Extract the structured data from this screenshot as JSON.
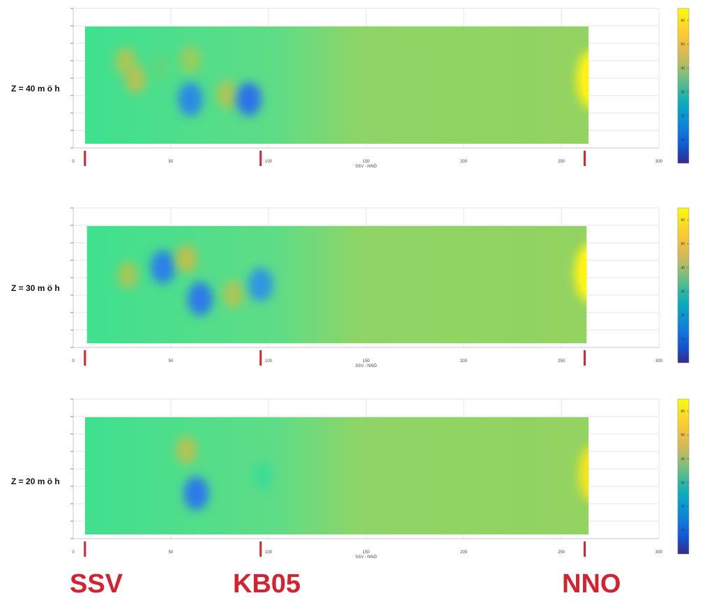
{
  "colors": {
    "marker_red": "#d4232f",
    "grid": "#e6e6e6",
    "axis": "#c8c8c8"
  },
  "markers": {
    "x_positions": [
      6,
      96,
      262
    ],
    "labels": [
      "SSV",
      "KB05",
      "NNO"
    ]
  },
  "chart_data": [
    {
      "type": "heatmap",
      "panel_label": "Z = 40 m ö h",
      "xlabel": "SSV - NNÖ",
      "xlim": [
        0,
        300
      ],
      "xticks": [
        0,
        50,
        100,
        150,
        200,
        250,
        300
      ],
      "data_x_range": [
        6,
        264
      ],
      "colorbar": {
        "ticks": [
          "10",
          "20",
          "30",
          "40",
          "50",
          "60"
        ],
        "range": [
          0,
          65
        ]
      },
      "features": [
        {
          "kind": "blob",
          "x": 27,
          "y": 0.3,
          "value": 34
        },
        {
          "kind": "blob",
          "x": 32,
          "y": 0.45,
          "value": 35
        },
        {
          "kind": "blob",
          "x": 45,
          "y": 0.35,
          "value": 27
        },
        {
          "kind": "blob",
          "x": 60,
          "y": 0.28,
          "value": 32
        },
        {
          "kind": "blob",
          "x": 60,
          "y": 0.62,
          "value": 12
        },
        {
          "kind": "blob",
          "x": 79,
          "y": 0.58,
          "value": 34
        },
        {
          "kind": "blob",
          "x": 90,
          "y": 0.62,
          "value": 6
        },
        {
          "kind": "edge",
          "x": 262,
          "y": 0.45,
          "value": 55
        }
      ]
    },
    {
      "type": "heatmap",
      "panel_label": "Z = 30 m ö h",
      "xlabel": "SSV - NNÖ",
      "xlim": [
        0,
        300
      ],
      "xticks": [
        0,
        50,
        100,
        150,
        200,
        250,
        300
      ],
      "data_x_range": [
        7,
        263
      ],
      "colorbar": {
        "ticks": [
          "10",
          "20",
          "30",
          "40",
          "50",
          "60"
        ],
        "range": [
          0,
          65
        ]
      },
      "features": [
        {
          "kind": "blob",
          "x": 28,
          "y": 0.42,
          "value": 33
        },
        {
          "kind": "blob",
          "x": 46,
          "y": 0.35,
          "value": 10
        },
        {
          "kind": "blob",
          "x": 58,
          "y": 0.28,
          "value": 36
        },
        {
          "kind": "blob",
          "x": 65,
          "y": 0.62,
          "value": 8
        },
        {
          "kind": "blob",
          "x": 82,
          "y": 0.58,
          "value": 34
        },
        {
          "kind": "blob",
          "x": 96,
          "y": 0.5,
          "value": 15
        },
        {
          "kind": "edge",
          "x": 261,
          "y": 0.4,
          "value": 56
        }
      ]
    },
    {
      "type": "heatmap",
      "panel_label": "Z = 20 m ö h",
      "xlabel": "SSV - NNÖ",
      "xlim": [
        0,
        300
      ],
      "xticks": [
        0,
        50,
        100,
        150,
        200,
        250,
        300
      ],
      "data_x_range": [
        6,
        264
      ],
      "colorbar": {
        "ticks": [
          "10",
          "20",
          "30",
          "40",
          "50",
          "60"
        ],
        "range": [
          0,
          65
        ]
      },
      "features": [
        {
          "kind": "blob",
          "x": 58,
          "y": 0.28,
          "value": 35
        },
        {
          "kind": "blob",
          "x": 63,
          "y": 0.65,
          "value": 8
        },
        {
          "kind": "blob",
          "x": 97,
          "y": 0.5,
          "value": 24
        },
        {
          "kind": "edge",
          "x": 263,
          "y": 0.48,
          "value": 50
        }
      ]
    }
  ]
}
